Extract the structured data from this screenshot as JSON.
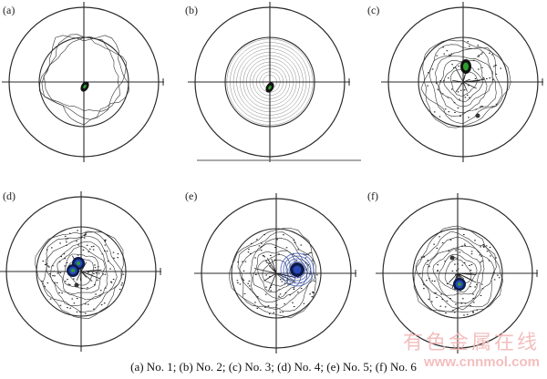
{
  "panels": [
    {
      "label": "(a)",
      "style": "grain"
    },
    {
      "label": "(b)",
      "style": "rings"
    },
    {
      "label": "(c)",
      "style": "scatter"
    },
    {
      "label": "(d)",
      "style": "dense"
    },
    {
      "label": "(e)",
      "style": "dense-big"
    },
    {
      "label": "(f)",
      "style": "dense-low"
    }
  ],
  "caption": "(a) No. 1; (b) No. 2; (c) No. 3; (d) No. 4; (e) No. 5; (f) No. 6",
  "watermark": {
    "text": "有色金属在线",
    "url": "www.cnnmol.com"
  },
  "colors": {
    "ink": "#2a2a2a",
    "pole_dark": "#0d1a4a",
    "pole_blue": "#2848b8",
    "pole_green": "#2e9e2e"
  }
}
